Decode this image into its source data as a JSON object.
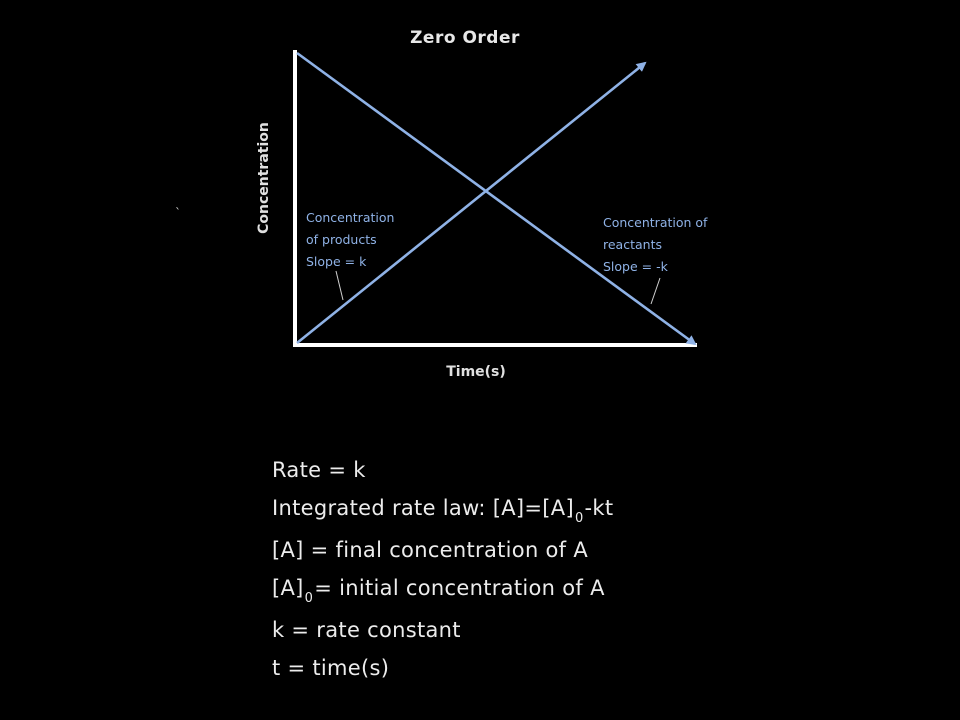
{
  "chart": {
    "title": "Zero Order",
    "ylabel": "Concentration",
    "xlabel": "Time(s)",
    "stray_mark": "`",
    "line_color": "#8fb2e6",
    "axis_color": "#ffffff"
  },
  "annotations": {
    "products": [
      "Concentration",
      "of products",
      "Slope = k"
    ],
    "reactants": [
      "Concentration of",
      "reactants",
      "Slope = -k"
    ]
  },
  "notes": {
    "line1": "Rate = k",
    "line2_prefix": "Integrated rate law: [A]=[A]",
    "line2_sub": "0",
    "line2_suffix": "-kt",
    "line3": "[A] = final concentration of A",
    "line4_prefix": "[A]",
    "line4_sub": "0",
    "line4_suffix": "= initial concentration of A",
    "line5": "k = rate constant",
    "line6": "t = time(s)"
  },
  "chart_data": {
    "type": "line",
    "title": "Zero Order",
    "xlabel": "Time(s)",
    "ylabel": "Concentration",
    "series": [
      {
        "name": "Concentration of products",
        "slope": "k",
        "trend": "increasing"
      },
      {
        "name": "Concentration of reactants",
        "slope": "-k",
        "trend": "decreasing"
      }
    ],
    "grid": false
  }
}
